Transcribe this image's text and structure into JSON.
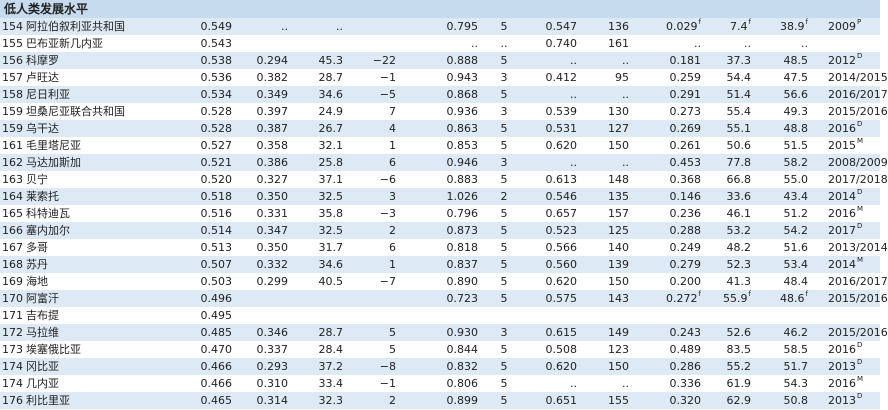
{
  "table": {
    "title": "低人类发展水平",
    "rows": [
      [
        "154",
        "阿拉伯叙利亚共和国",
        "0.549",
        "..",
        "..",
        null,
        "0.795",
        "5",
        "0.547",
        "136",
        {
          "text": "0.029",
          "sup": "f"
        },
        {
          "text": "7.4",
          "sup": "f"
        },
        {
          "text": "38.9",
          "sup": "f"
        },
        {
          "text": "2009",
          "sup": "P"
        }
      ],
      [
        "155",
        "巴布亚新几内亚",
        "0.543",
        null,
        null,
        null,
        "..",
        "..",
        "0.740",
        "161",
        "..",
        "..",
        "..",
        null
      ],
      [
        "156",
        "科摩罗",
        "0.538",
        "0.294",
        "45.3",
        "−22",
        "0.888",
        "5",
        "..",
        "..",
        "0.181",
        "37.3",
        "48.5",
        {
          "text": "2012",
          "sup": "D"
        }
      ],
      [
        "157",
        "卢旺达",
        "0.536",
        "0.382",
        "28.7",
        "−1",
        "0.943",
        "3",
        "0.412",
        "95",
        "0.259",
        "54.4",
        "47.5",
        "2014/2015"
      ],
      [
        "158",
        "尼日利亚",
        "0.534",
        "0.349",
        "34.6",
        "−5",
        "0.868",
        "5",
        "..",
        "..",
        "0.291",
        "51.4",
        "56.6",
        "2016/2017"
      ],
      [
        "159",
        "坦桑尼亚联合共和国",
        "0.528",
        "0.397",
        "24.9",
        "7",
        "0.936",
        "3",
        "0.539",
        "130",
        "0.273",
        "55.4",
        "49.3",
        "2015/2016"
      ],
      [
        "159",
        "乌干达",
        "0.528",
        "0.387",
        "26.7",
        "4",
        "0.863",
        "5",
        "0.531",
        "127",
        "0.269",
        "55.1",
        "48.8",
        {
          "text": "2016",
          "sup": "D"
        }
      ],
      [
        "161",
        "毛里塔尼亚",
        "0.527",
        "0.358",
        "32.1",
        "1",
        "0.853",
        "5",
        "0.620",
        "150",
        "0.261",
        "50.6",
        "51.5",
        {
          "text": "2015",
          "sup": "M"
        }
      ],
      [
        "162",
        "马达加斯加",
        "0.521",
        "0.386",
        "25.8",
        "6",
        "0.946",
        "3",
        "..",
        "..",
        "0.453",
        "77.8",
        "58.2",
        "2008/2009"
      ],
      [
        "163",
        "贝宁",
        "0.520",
        "0.327",
        "37.1",
        "−6",
        "0.883",
        "5",
        "0.613",
        "148",
        "0.368",
        "66.8",
        "55.0",
        "2017/2018"
      ],
      [
        "164",
        "莱索托",
        "0.518",
        "0.350",
        "32.5",
        "3",
        "1.026",
        "2",
        "0.546",
        "135",
        "0.146",
        "33.6",
        "43.4",
        {
          "text": "2014",
          "sup": "D"
        }
      ],
      [
        "165",
        "科特迪瓦",
        "0.516",
        "0.331",
        "35.8",
        "−3",
        "0.796",
        "5",
        "0.657",
        "157",
        "0.236",
        "46.1",
        "51.2",
        {
          "text": "2016",
          "sup": "M"
        }
      ],
      [
        "166",
        "塞内加尔",
        "0.514",
        "0.347",
        "32.5",
        "2",
        "0.873",
        "5",
        "0.523",
        "125",
        "0.288",
        "53.2",
        "54.2",
        {
          "text": "2017",
          "sup": "D"
        }
      ],
      [
        "167",
        "多哥",
        "0.513",
        "0.350",
        "31.7",
        "6",
        "0.818",
        "5",
        "0.566",
        "140",
        "0.249",
        "48.2",
        "51.6",
        "2013/2014"
      ],
      [
        "168",
        "苏丹",
        "0.507",
        "0.332",
        "34.6",
        "1",
        "0.837",
        "5",
        "0.560",
        "139",
        "0.279",
        "52.3",
        "53.4",
        {
          "text": "2014",
          "sup": "M"
        }
      ],
      [
        "169",
        "海地",
        "0.503",
        "0.299",
        "40.5",
        "−7",
        "0.890",
        "5",
        "0.620",
        "150",
        "0.200",
        "41.3",
        "48.4",
        "2016/2017"
      ],
      [
        "170",
        "阿富汗",
        "0.496",
        null,
        null,
        null,
        "0.723",
        "5",
        "0.575",
        "143",
        {
          "text": "0.272",
          "sup": "f"
        },
        {
          "text": "55.9",
          "sup": "f"
        },
        {
          "text": "48.6",
          "sup": "f"
        },
        "2015/2016"
      ],
      [
        "171",
        "吉布提",
        "0.495",
        null,
        null,
        null,
        null,
        null,
        null,
        null,
        null,
        null,
        null,
        null
      ],
      [
        "172",
        "马拉维",
        "0.485",
        "0.346",
        "28.7",
        "5",
        "0.930",
        "3",
        "0.615",
        "149",
        "0.243",
        "52.6",
        "46.2",
        "2015/2016"
      ],
      [
        "173",
        "埃塞俄比亚",
        "0.470",
        "0.337",
        "28.4",
        "5",
        "0.844",
        "5",
        "0.508",
        "123",
        "0.489",
        "83.5",
        "58.5",
        {
          "text": "2016",
          "sup": "D"
        }
      ],
      [
        "174",
        "冈比亚",
        "0.466",
        "0.293",
        "37.2",
        "−8",
        "0.832",
        "5",
        "0.620",
        "150",
        "0.286",
        "55.2",
        "51.7",
        {
          "text": "2013",
          "sup": "D"
        }
      ],
      [
        "174",
        "几内亚",
        "0.466",
        "0.310",
        "33.4",
        "−1",
        "0.806",
        "5",
        "..",
        "..",
        "0.336",
        "61.9",
        "54.3",
        {
          "text": "2016",
          "sup": "M"
        }
      ],
      [
        "176",
        "利比里亚",
        "0.465",
        "0.314",
        "32.3",
        "2",
        "0.899",
        "5",
        "0.651",
        "155",
        "0.320",
        "62.9",
        "50.8",
        {
          "text": "2013",
          "sup": "D"
        }
      ]
    ]
  }
}
